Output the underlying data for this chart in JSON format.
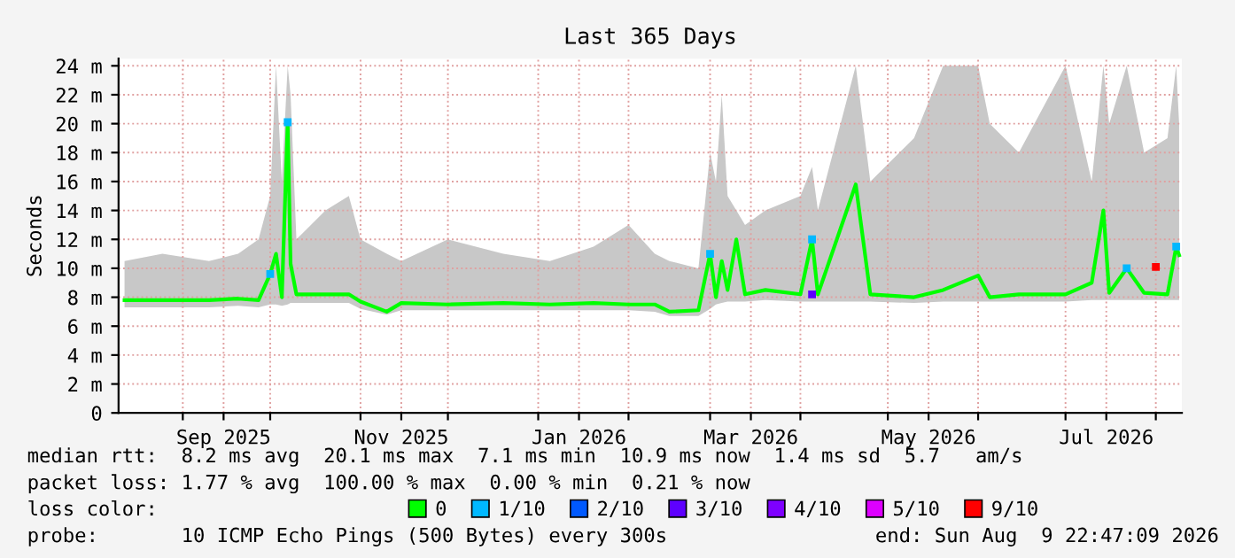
{
  "chart_data": {
    "type": "line",
    "title": "Last 365 Days",
    "ylabel": "Seconds",
    "xlim": [
      "2025-08-09T22:47",
      "2026-08-09T22:47"
    ],
    "xticks": [
      {
        "value": "2025-09-01",
        "label": null
      },
      {
        "value": "2025-09-15",
        "label": "Sep 2025"
      },
      {
        "value": "2025-10-01",
        "label": null
      },
      {
        "value": "2025-11-01",
        "label": null
      },
      {
        "value": "2025-11-15",
        "label": "Nov 2025"
      },
      {
        "value": "2025-12-01",
        "label": null
      },
      {
        "value": "2026-01-01",
        "label": null
      },
      {
        "value": "2026-01-15",
        "label": "Jan 2026"
      },
      {
        "value": "2026-02-01",
        "label": null
      },
      {
        "value": "2026-03-01",
        "label": null
      },
      {
        "value": "2026-03-15",
        "label": "Mar 2026"
      },
      {
        "value": "2026-04-01",
        "label": null
      },
      {
        "value": "2026-05-01",
        "label": null
      },
      {
        "value": "2026-05-15",
        "label": "May 2026"
      },
      {
        "value": "2026-06-01",
        "label": null
      },
      {
        "value": "2026-07-01",
        "label": null
      },
      {
        "value": "2026-07-15",
        "label": "Jul 2026"
      },
      {
        "value": "2026-08-01",
        "label": null
      }
    ],
    "ylim": [
      0,
      24.5
    ],
    "yticks": [
      0,
      {
        "value": 2,
        "label": "2 m"
      },
      {
        "value": 4,
        "label": "4 m"
      },
      {
        "value": 6,
        "label": "6 m"
      },
      {
        "value": 8,
        "label": "8 m"
      },
      {
        "value": 10,
        "label": "10 m"
      },
      {
        "value": 12,
        "label": "12 m"
      },
      {
        "value": 14,
        "label": "14 m"
      },
      {
        "value": 16,
        "label": "16 m"
      },
      {
        "value": 18,
        "label": "18 m"
      },
      {
        "value": 20,
        "label": "20 m"
      },
      {
        "value": 22,
        "label": "22 m"
      },
      {
        "value": 24,
        "label": "24 m"
      }
    ],
    "grid": true,
    "legend": "bottom",
    "legend_title": "loss color:",
    "series": [
      {
        "name": "0",
        "color": "#00ff00",
        "x": [
          "2025-08-12",
          "2025-08-25",
          "2025-09-10",
          "2025-09-20",
          "2025-09-27",
          "2025-10-01",
          "2025-10-03",
          "2025-10-05",
          "2025-10-07",
          "2025-10-08",
          "2025-10-10",
          "2025-10-20",
          "2025-10-28",
          "2025-11-01",
          "2025-11-10",
          "2025-11-15",
          "2025-12-01",
          "2025-12-20",
          "2026-01-05",
          "2026-01-20",
          "2026-02-01",
          "2026-02-10",
          "2026-02-15",
          "2026-02-25",
          "2026-03-01",
          "2026-03-03",
          "2026-03-05",
          "2026-03-07",
          "2026-03-10",
          "2026-03-13",
          "2026-03-20",
          "2026-04-01",
          "2026-04-05",
          "2026-04-07",
          "2026-04-20",
          "2026-04-25",
          "2026-05-10",
          "2026-05-20",
          "2026-06-01",
          "2026-06-05",
          "2026-06-15",
          "2026-07-01",
          "2026-07-10",
          "2026-07-14",
          "2026-07-16",
          "2026-07-22",
          "2026-07-28",
          "2026-08-05",
          "2026-08-08",
          "2026-08-09"
        ],
        "values": [
          7.8,
          7.8,
          7.8,
          7.9,
          7.8,
          9.6,
          11,
          8,
          20.1,
          10.3,
          8.2,
          8.2,
          8.2,
          7.7,
          7.0,
          7.6,
          7.5,
          7.6,
          7.5,
          7.6,
          7.5,
          7.5,
          7.0,
          7.1,
          11,
          8,
          10.5,
          8.5,
          12,
          8.2,
          8.5,
          8.2,
          12,
          8.2,
          15.8,
          8.2,
          8.0,
          8.5,
          9.5,
          8.0,
          8.2,
          8.2,
          9.0,
          14,
          8.3,
          10,
          8.3,
          8.2,
          11.5,
          10.9
        ],
        "lower": [
          7.3,
          7.3,
          7.3,
          7.4,
          7.3,
          7.5,
          7.5,
          7.4,
          7.5,
          7.6,
          7.6,
          7.6,
          7.6,
          7.2,
          6.8,
          7.1,
          7.1,
          7.1,
          7.1,
          7.1,
          7.1,
          7.0,
          6.7,
          6.7,
          7.2,
          7.5,
          7.6,
          7.7,
          7.7,
          7.7,
          7.8,
          7.7,
          7.7,
          7.7,
          7.7,
          7.7,
          7.6,
          7.7,
          7.7,
          7.7,
          7.7,
          7.7,
          7.8,
          7.8,
          7.8,
          7.8,
          7.8,
          7.8,
          7.8,
          7.8
        ],
        "upper": [
          10.5,
          11,
          10.5,
          11,
          12,
          15,
          24,
          16,
          24,
          22,
          12,
          14,
          15,
          12,
          11,
          10.5,
          12,
          11,
          10.5,
          11.5,
          13,
          11,
          10.5,
          10,
          18,
          16,
          22,
          15,
          14,
          13,
          14,
          15,
          17,
          14,
          24,
          16,
          19,
          24,
          24,
          20,
          18,
          24,
          16,
          24,
          20,
          24,
          18,
          19,
          24,
          20
        ]
      },
      {
        "name": "1/10",
        "type": "scatter",
        "marker": "square",
        "color": "#00b8ff",
        "x": [
          "2025-10-01",
          "2025-10-07",
          "2026-03-01",
          "2026-04-05",
          "2026-07-22",
          "2026-08-08"
        ],
        "values": [
          9.6,
          20.1,
          11,
          12,
          10,
          11.5
        ]
      },
      {
        "name": "2/10",
        "type": "scatter",
        "color": "#0059ff"
      },
      {
        "name": "3/10",
        "type": "scatter",
        "marker": "square",
        "color": "#5e00ff",
        "x": [
          "2026-04-05"
        ],
        "values": [
          8.2
        ]
      },
      {
        "name": "4/10",
        "type": "scatter",
        "color": "#7e00ff"
      },
      {
        "name": "5/10",
        "type": "scatter",
        "color": "#dd00ff"
      },
      {
        "name": "9/10",
        "type": "scatter",
        "marker": "square",
        "color": "#ff0000",
        "x": [
          "2026-08-01"
        ],
        "values": [
          10.1
        ]
      }
    ],
    "annotations": [
      "median rtt:  8.2 ms avg  20.1 ms max  7.1 ms min  10.9 ms now  1.4 ms sd  5.7   am/s",
      "packet loss: 1.77 % avg  100.00 % max  0.00 % min  0.21 % now",
      "probe:       10 ICMP Echo Pings (500 Bytes) every 300s",
      "end: Sun Aug  9 22:47:09 2026"
    ]
  }
}
